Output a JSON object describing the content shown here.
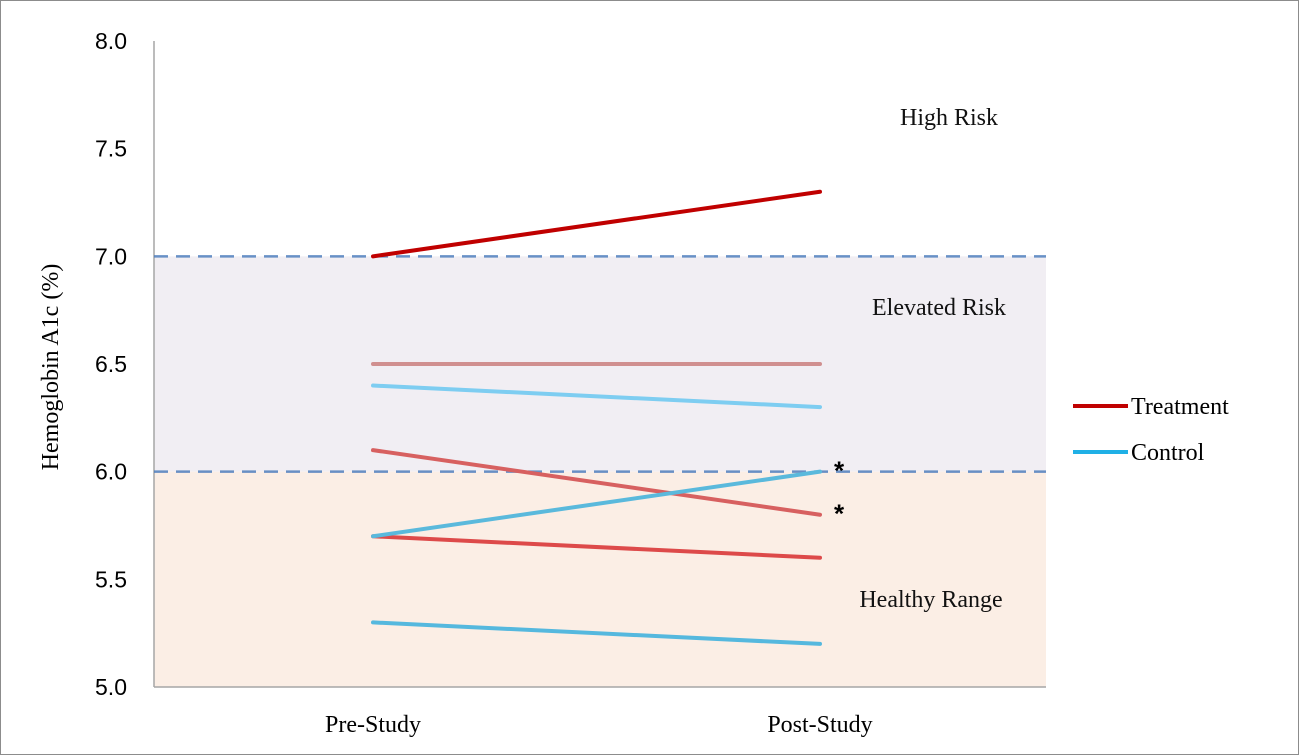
{
  "chart_data": {
    "type": "line",
    "ylabel": "Hemoglobin A1c (%)",
    "xlabel": "",
    "ylim": [
      5.0,
      8.0
    ],
    "yticks": [
      "5.0",
      "5.5",
      "6.0",
      "6.5",
      "7.0",
      "7.5",
      "8.0"
    ],
    "categories": [
      "Pre-Study",
      "Post-Study"
    ],
    "grid": false,
    "legend_position": "right",
    "legend": [
      {
        "name": "Treatment",
        "color": "#c00000"
      },
      {
        "name": "Control",
        "color": "#1fb0e6"
      }
    ],
    "zones": [
      {
        "label": "High Risk",
        "from": 7.0,
        "to": 8.0,
        "fill": "#ffffff"
      },
      {
        "label": "Elevated Risk",
        "from": 6.0,
        "to": 7.0,
        "fill": "#f1eef3"
      },
      {
        "label": "Healthy Range",
        "from": 5.0,
        "to": 6.0,
        "fill": "#fbeee5"
      }
    ],
    "thresholds": [
      7.0,
      6.0
    ],
    "threshold_color": "#4f7fbe",
    "series": [
      {
        "group": "Treatment",
        "values": [
          7.0,
          7.3
        ],
        "color": "#c00000"
      },
      {
        "group": "Treatment",
        "values": [
          6.5,
          6.5
        ],
        "color": "#d08f8f"
      },
      {
        "group": "Treatment",
        "values": [
          6.1,
          5.8
        ],
        "color": "#d76060",
        "annotation": "*"
      },
      {
        "group": "Treatment",
        "values": [
          5.7,
          5.6
        ],
        "color": "#dd4a4a"
      },
      {
        "group": "Control",
        "values": [
          6.4,
          6.3
        ],
        "color": "#7ecdf1"
      },
      {
        "group": "Control",
        "values": [
          5.7,
          6.0
        ],
        "color": "#5ab9dc",
        "annotation": "*"
      },
      {
        "group": "Control",
        "values": [
          5.3,
          5.2
        ],
        "color": "#55b8de"
      }
    ]
  }
}
